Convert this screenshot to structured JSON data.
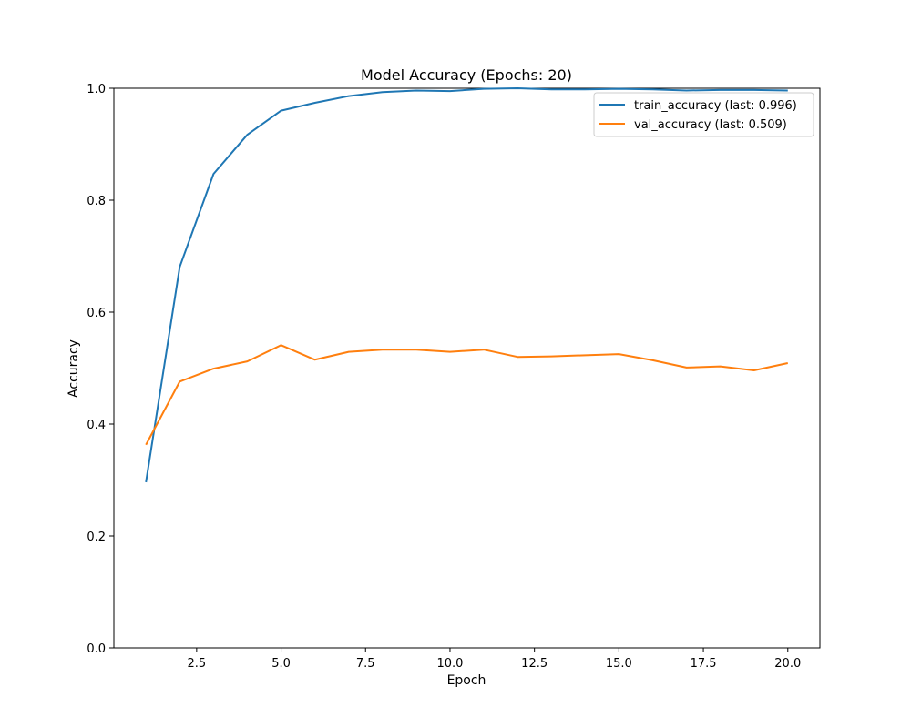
{
  "chart_data": {
    "type": "line",
    "title": "Model Accuracy (Epochs: 20)",
    "xlabel": "Epoch",
    "ylabel": "Accuracy",
    "xlim": [
      0.05,
      20.95
    ],
    "ylim": [
      0.0,
      1.0
    ],
    "x_ticks": [
      2.5,
      5.0,
      7.5,
      10.0,
      12.5,
      15.0,
      17.5,
      20.0
    ],
    "x_tick_labels": [
      "2.5",
      "5.0",
      "7.5",
      "10.0",
      "12.5",
      "15.0",
      "17.5",
      "20.0"
    ],
    "y_ticks": [
      0.0,
      0.2,
      0.4,
      0.6,
      0.8,
      1.0
    ],
    "y_tick_labels": [
      "0.0",
      "0.2",
      "0.4",
      "0.6",
      "0.8",
      "1.0"
    ],
    "grid": false,
    "legend_position": "top-right",
    "x": [
      1,
      2,
      3,
      4,
      5,
      6,
      7,
      8,
      9,
      10,
      11,
      12,
      13,
      14,
      15,
      16,
      17,
      18,
      19,
      20
    ],
    "series": [
      {
        "name": "train_accuracy (last: 0.996)",
        "color": "#1f77b4",
        "values": [
          0.296,
          0.681,
          0.847,
          0.917,
          0.96,
          0.974,
          0.986,
          0.993,
          0.996,
          0.995,
          0.999,
          1.0,
          0.998,
          0.998,
          0.999,
          0.998,
          0.996,
          0.997,
          0.997,
          0.996
        ]
      },
      {
        "name": "val_accuracy (last: 0.509)",
        "color": "#ff7f0e",
        "values": [
          0.363,
          0.476,
          0.499,
          0.512,
          0.541,
          0.515,
          0.529,
          0.533,
          0.533,
          0.529,
          0.533,
          0.52,
          0.521,
          0.523,
          0.525,
          0.514,
          0.501,
          0.503,
          0.496,
          0.509
        ]
      }
    ]
  }
}
